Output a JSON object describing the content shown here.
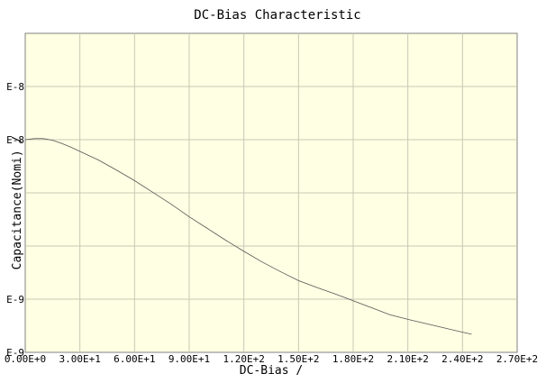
{
  "chart_data": {
    "type": "line",
    "title": "DC-Bias Characteristic",
    "xlabel": "DC-Bias /",
    "ylabel": "Capacitance(Nomi) /",
    "xlim": [
      0,
      270
    ],
    "ylim": [
      0,
      6
    ],
    "x_tick_labels": [
      "0.00E+0",
      "3.00E+1",
      "6.00E+1",
      "9.00E+1",
      "1.20E+2",
      "1.50E+2",
      "1.80E+2",
      "2.10E+2",
      "2.40E+2",
      "2.70E+2"
    ],
    "y_tick_labels": [
      "E-9",
      "E-9",
      "",
      "",
      "E-8",
      "E-8"
    ],
    "grid": true,
    "series": [
      {
        "x": [
          0,
          5,
          10,
          15,
          20,
          25,
          30,
          40,
          50,
          60,
          70,
          80,
          90,
          100,
          110,
          120,
          130,
          140,
          150,
          160,
          170,
          180,
          190,
          200,
          210,
          220,
          230,
          240,
          245
        ],
        "y": [
          4.0,
          4.02,
          4.02,
          3.99,
          3.93,
          3.86,
          3.78,
          3.62,
          3.43,
          3.23,
          3.01,
          2.79,
          2.55,
          2.33,
          2.11,
          1.9,
          1.7,
          1.52,
          1.35,
          1.22,
          1.1,
          0.97,
          0.84,
          0.71,
          0.62,
          0.54,
          0.46,
          0.38,
          0.34
        ]
      }
    ]
  }
}
